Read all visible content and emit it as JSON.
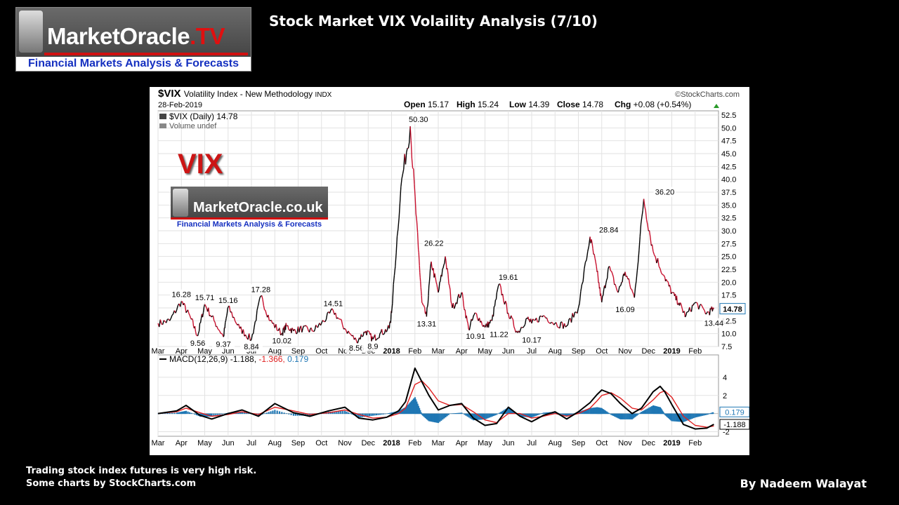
{
  "logo": {
    "name": "MarketOracle",
    "suffix": ".TV",
    "tagline": "Financial Markets Analysis & Forecasts"
  },
  "title": "Stock Market VIX Volaility Analysis (7/10)",
  "footer": {
    "line1": "Trading  stock index futures is very  high risk.",
    "line2": "Some charts by StockCharts.com"
  },
  "author": "By Nadeem Walayat",
  "overlay": {
    "vix_text": "VIX",
    "logo_name": "MarketOracle.co.uk",
    "logo_tagline": "Financial Markets Analysis & Forecasts"
  },
  "colors": {
    "price_up": "#000000",
    "price_down": "#c8102e",
    "macd_line": "#000000",
    "signal_line": "#e02020",
    "histogram": "#1f77b4",
    "last_value": "#1f77b4"
  },
  "chart_data": [
    {
      "type": "line",
      "title": "$VIX Volatility Index - New Methodology INDX",
      "symbol": "$VIX",
      "description": "Volatility Index - New Methodology",
      "exchange": "INDX",
      "date": "28-Feb-2019",
      "source": "©StockCharts.com",
      "legend": [
        "$VIX (Daily) 14.78",
        "Volume undef"
      ],
      "ohlc": {
        "Open": "15.17",
        "High": "15.24",
        "Low": "14.39",
        "Close": "14.78",
        "Chg": "+0.08 (+0.54%)"
      },
      "ylim": [
        7.5,
        52.5
      ],
      "y_ticks": [
        "7.5",
        "10.0",
        "12.5",
        "15.0",
        "17.5",
        "20.0",
        "22.5",
        "25.0",
        "27.5",
        "30.0",
        "32.5",
        "35.0",
        "37.5",
        "40.0",
        "42.5",
        "45.0",
        "47.5",
        "50.0",
        "52.5"
      ],
      "y_axis_side": "right",
      "x_ticks": [
        "Mar",
        "Apr",
        "May",
        "Jun",
        "Jul",
        "Aug",
        "Sep",
        "Oct",
        "Nov",
        "Dec",
        "2018",
        "Feb",
        "Mar",
        "Apr",
        "May",
        "Jun",
        "Jul",
        "Aug",
        "Sep",
        "Oct",
        "Nov",
        "Dec",
        "2019",
        "Feb"
      ],
      "last_value": "14.78",
      "x": [
        0,
        0.5,
        1,
        1.4,
        1.7,
        2,
        2.4,
        2.8,
        3,
        3.5,
        4,
        4.4,
        4.8,
        5.3,
        5.5,
        5.8,
        6.2,
        6.6,
        7,
        7.5,
        8,
        8.5,
        8.9,
        9.2,
        9.5,
        9.9,
        10,
        10.4,
        10.8,
        11.15,
        11.3,
        11.5,
        11.7,
        12,
        12.3,
        12.6,
        13,
        13.3,
        13.6,
        14,
        14.3,
        14.6,
        15,
        15.4,
        15.8,
        16,
        16.5,
        17,
        17.5,
        18,
        18.5,
        18.8,
        19,
        19.3,
        19.7,
        20,
        20.4,
        20.8,
        21.2,
        21.7,
        22,
        22.3,
        22.6,
        23,
        23.5,
        23.8
      ],
      "y": [
        12,
        12.5,
        16.28,
        13,
        9.56,
        15.71,
        12.5,
        9.37,
        15.16,
        11,
        8.84,
        17.28,
        12.5,
        10.02,
        11.5,
        10.5,
        11,
        10.5,
        12,
        14.51,
        11,
        8.56,
        10.5,
        8.9,
        10,
        11,
        14,
        38.5,
        50.3,
        26.22,
        16,
        13.31,
        24,
        18,
        25,
        15,
        18,
        10.91,
        14,
        11.22,
        12.5,
        19.61,
        14,
        10.17,
        13,
        12,
        13.5,
        12,
        11.5,
        15,
        28.84,
        22,
        16.09,
        23,
        18,
        22,
        17,
        36.2,
        26,
        21,
        18,
        16,
        13.44,
        16,
        14,
        14.78
      ],
      "annotations": [
        {
          "x": 1,
          "y": 16.28,
          "label": "16.28",
          "pos": "above"
        },
        {
          "x": 1.7,
          "y": 9.56,
          "label": "9.56",
          "pos": "below"
        },
        {
          "x": 2,
          "y": 15.71,
          "label": "15.71",
          "pos": "above"
        },
        {
          "x": 2.8,
          "y": 9.37,
          "label": "9.37",
          "pos": "below"
        },
        {
          "x": 3,
          "y": 15.16,
          "label": "15.16",
          "pos": "above"
        },
        {
          "x": 4,
          "y": 8.84,
          "label": "8.84",
          "pos": "below"
        },
        {
          "x": 4.4,
          "y": 17.28,
          "label": "17.28",
          "pos": "above"
        },
        {
          "x": 5.3,
          "y": 10.02,
          "label": "10.02",
          "pos": "below"
        },
        {
          "x": 7.5,
          "y": 14.51,
          "label": "14.51",
          "pos": "above"
        },
        {
          "x": 8.5,
          "y": 8.56,
          "label": "8.56",
          "pos": "below"
        },
        {
          "x": 9.2,
          "y": 8.9,
          "label": "8.9",
          "pos": "below"
        },
        {
          "x": 11.15,
          "y": 50.3,
          "label": "50.30",
          "pos": "above"
        },
        {
          "x": 11.15,
          "y": 26.22,
          "label": "26.22",
          "pos": "above",
          "dx": 22
        },
        {
          "x": 11.5,
          "y": 13.31,
          "label": "13.31",
          "pos": "below"
        },
        {
          "x": 13.6,
          "y": 10.91,
          "label": "10.91",
          "pos": "below"
        },
        {
          "x": 14.6,
          "y": 11.22,
          "label": "11.22",
          "pos": "below"
        },
        {
          "x": 15,
          "y": 19.61,
          "label": "19.61",
          "pos": "above"
        },
        {
          "x": 16,
          "y": 10.17,
          "label": "10.17",
          "pos": "below"
        },
        {
          "x": 19.3,
          "y": 28.84,
          "label": "28.84",
          "pos": "above"
        },
        {
          "x": 20,
          "y": 16.09,
          "label": "16.09",
          "pos": "below"
        },
        {
          "x": 21.7,
          "y": 36.2,
          "label": "36.20",
          "pos": "above"
        },
        {
          "x": 23.8,
          "y": 13.44,
          "label": "13.44",
          "pos": "below"
        }
      ]
    },
    {
      "type": "line",
      "title": "MACD(12,26,9) -1.188, -1.366, 0.179",
      "legend": {
        "name": "MACD(12,26,9)",
        "macd": "-1.188",
        "signal": "-1.366",
        "histogram": "0.179"
      },
      "ylim": [
        -2.5,
        6
      ],
      "y_ticks": [
        "4",
        "2",
        "-2"
      ],
      "y_axis_side": "right",
      "last_values": [
        "0.179",
        "-1.188"
      ],
      "x_ticks": [
        "Mar",
        "Apr",
        "May",
        "Jun",
        "Jul",
        "Aug",
        "Sep",
        "Oct",
        "Nov",
        "Dec",
        "2018",
        "Feb",
        "Mar",
        "Apr",
        "May",
        "Jun",
        "Jul",
        "Aug",
        "Sep",
        "Oct",
        "Nov",
        "Dec",
        "2019",
        "Feb"
      ],
      "x": [
        0,
        0.8,
        1.2,
        1.8,
        2.3,
        3,
        3.6,
        4.3,
        5,
        5.8,
        6.5,
        7.3,
        8,
        8.6,
        9.2,
        9.8,
        10.3,
        10.6,
        11,
        11.3,
        11.6,
        12,
        12.5,
        13,
        13.5,
        14,
        14.5,
        15,
        15.5,
        16,
        16.5,
        17,
        17.5,
        18,
        18.5,
        18.8,
        19,
        19.4,
        19.8,
        20.3,
        20.7,
        21.2,
        21.5,
        21.7,
        22,
        22.5,
        23,
        23.5,
        23.8
      ],
      "series": [
        {
          "name": "MACD",
          "values": [
            0,
            0.3,
            0.9,
            -0.2,
            -0.6,
            0,
            0.4,
            -0.3,
            1.1,
            0.1,
            -0.3,
            0.3,
            0.7,
            -0.5,
            -0.7,
            -0.4,
            0.3,
            1.3,
            5,
            3.5,
            2,
            0.4,
            0.9,
            1.1,
            -0.5,
            -1.3,
            -1.1,
            0.7,
            -0.3,
            -0.9,
            -0.2,
            0.2,
            -0.6,
            0.2,
            1.2,
            2.1,
            2.6,
            2.2,
            1.1,
            0,
            0.6,
            2.4,
            3,
            2.4,
            1,
            -1.2,
            -1.7,
            -1.6,
            -1.188
          ]
        },
        {
          "name": "Signal",
          "values": [
            0,
            0.2,
            0.6,
            0.1,
            -0.3,
            -0.1,
            0.2,
            -0.1,
            0.7,
            0.3,
            -0.1,
            0.1,
            0.4,
            -0.1,
            -0.5,
            -0.4,
            0,
            0.6,
            3.2,
            3.6,
            2.8,
            1.4,
            0.9,
            1,
            0.2,
            -0.7,
            -1,
            0,
            0,
            -0.5,
            -0.3,
            0,
            -0.3,
            0,
            0.6,
            1.4,
            2,
            2.3,
            1.7,
            0.6,
            0.4,
            1.5,
            2.3,
            2.5,
            1.8,
            -0.3,
            -1.3,
            -1.5,
            -1.366
          ]
        },
        {
          "name": "Histogram",
          "values": [
            0,
            0.1,
            0.3,
            -0.3,
            -0.3,
            0.1,
            0.2,
            -0.2,
            0.4,
            -0.2,
            -0.2,
            0.2,
            0.3,
            -0.4,
            -0.2,
            0,
            0.3,
            0.7,
            1.8,
            -0.1,
            -0.8,
            -1,
            0,
            0.1,
            -0.7,
            -0.6,
            -0.1,
            0.7,
            -0.3,
            -0.4,
            0.1,
            0.2,
            -0.3,
            0.2,
            0.6,
            0.7,
            0.6,
            -0.1,
            -0.6,
            -0.6,
            0.2,
            0.9,
            0.7,
            -0.1,
            -0.8,
            -0.9,
            -0.4,
            -0.1,
            0.179
          ]
        }
      ]
    }
  ]
}
